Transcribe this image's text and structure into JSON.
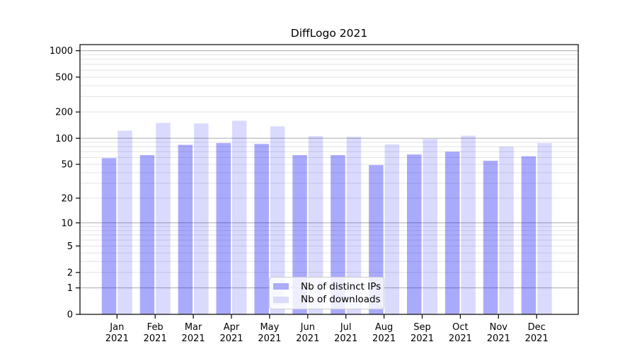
{
  "figure": {
    "title": "DiffLogo 2021",
    "background": "#FFFFFF"
  },
  "legend": {
    "items": [
      {
        "label": "Nb of distinct IPs",
        "swatch": "#ABABFA"
      },
      {
        "label": "Nb of downloads",
        "swatch": "#DBDBFA"
      }
    ]
  },
  "colors": {
    "bar_fill": "#0000FA",
    "bar_alpha_ips": 0.335,
    "bar_alpha_downloads": 0.145,
    "bar_ips_result": "#ABABFA",
    "bar_downloads_result": "#DBDBFA",
    "grid_major": "#ACACAC",
    "grid_minor": "#E3E3E3",
    "axis": "#000000"
  },
  "chart_data": {
    "type": "bar",
    "title": "DiffLogo 2021",
    "categories": [
      "Jan",
      "Feb",
      "Mar",
      "Apr",
      "May",
      "Jun",
      "Jul",
      "Aug",
      "Sep",
      "Oct",
      "Nov",
      "Dec"
    ],
    "year": "2021",
    "series": [
      {
        "name": "Nb of distinct IPs",
        "values": [
          59,
          64,
          84,
          88,
          86,
          64,
          64,
          49,
          65,
          70,
          55,
          62
        ]
      },
      {
        "name": "Nb of downloads",
        "values": [
          122,
          150,
          148,
          159,
          137,
          106,
          104,
          85,
          98,
          107,
          80,
          88
        ]
      }
    ],
    "xlabel": "",
    "ylabel": "",
    "yscale": "log10(value+1)",
    "yticks": [
      0,
      1,
      2,
      5,
      10,
      20,
      50,
      100,
      200,
      500,
      1000
    ],
    "ylim": [
      0,
      1170
    ],
    "grid": true,
    "legend_position": "lower center"
  }
}
